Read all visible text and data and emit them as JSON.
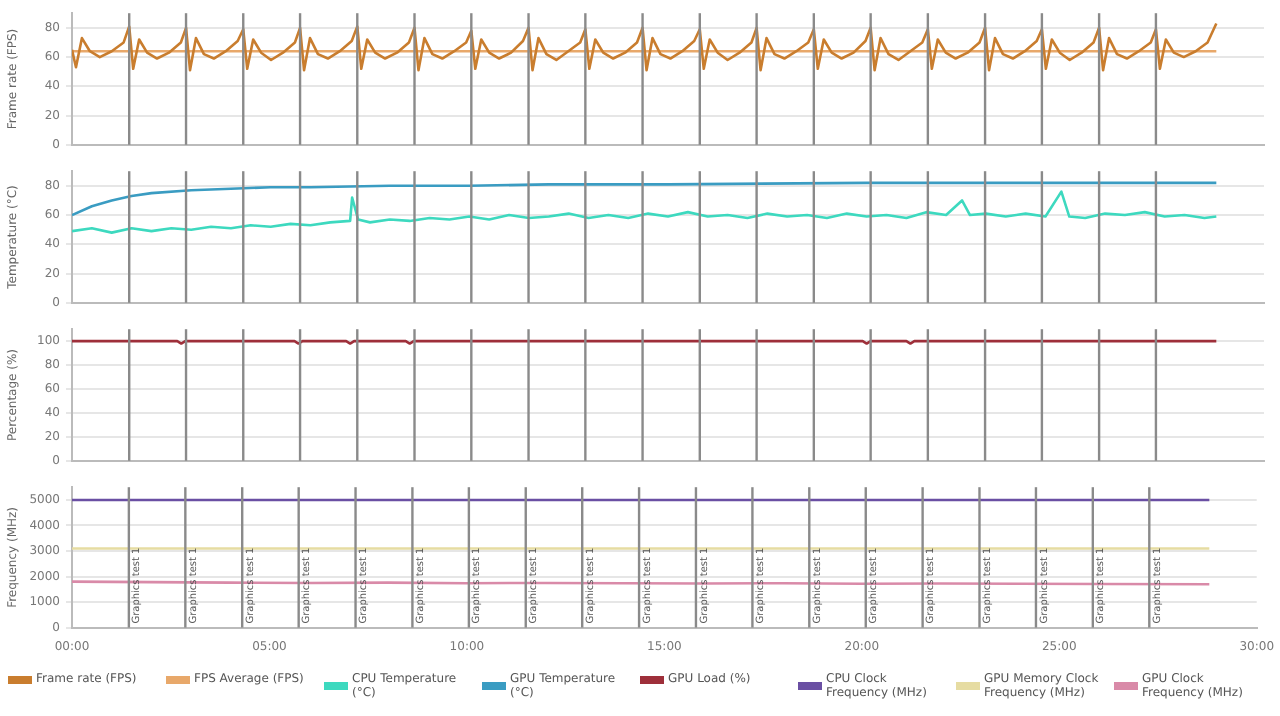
{
  "chart_data": [
    {
      "type": "line",
      "ylabel": "Frame rate (FPS)",
      "xlim": [
        0,
        30
      ],
      "ylim": [
        0,
        90
      ],
      "yticks": [
        0,
        20,
        40,
        60,
        80
      ],
      "tick_labels": "y",
      "grid": "y",
      "legend": "bottom",
      "marker": "none",
      "series": [
        {
          "name": "Frame rate (FPS)",
          "color": "#c97d2e",
          "x": [
            0,
            0.1,
            0.25,
            0.45,
            0.7,
            1.0,
            1.3,
            1.44,
            1.54,
            1.69,
            1.89,
            2.14,
            2.44,
            2.74,
            2.87,
            2.97,
            3.12,
            3.32,
            3.57,
            3.87,
            4.17,
            4.31,
            4.41,
            4.56,
            4.76,
            5.01,
            5.31,
            5.61,
            5.74,
            5.84,
            5.99,
            6.19,
            6.44,
            6.74,
            7.04,
            7.18,
            7.28,
            7.43,
            7.63,
            7.88,
            8.18,
            8.48,
            8.62,
            8.72,
            8.87,
            9.07,
            9.32,
            9.62,
            9.92,
            10.05,
            10.15,
            10.3,
            10.5,
            10.75,
            11.05,
            11.35,
            11.49,
            11.59,
            11.74,
            11.94,
            12.19,
            12.49,
            12.79,
            12.92,
            13.02,
            13.17,
            13.37,
            13.62,
            13.92,
            14.22,
            14.36,
            14.46,
            14.61,
            14.81,
            15.06,
            15.36,
            15.66,
            15.8,
            15.9,
            16.05,
            16.25,
            16.5,
            16.8,
            17.1,
            17.23,
            17.33,
            17.48,
            17.68,
            17.93,
            18.23,
            18.53,
            18.67,
            18.77,
            18.92,
            19.12,
            19.37,
            19.67,
            19.97,
            20.1,
            20.2,
            20.35,
            20.55,
            20.8,
            21.1,
            21.4,
            21.54,
            21.64,
            21.79,
            21.99,
            22.24,
            22.54,
            22.84,
            22.98,
            23.08,
            23.23,
            23.43,
            23.68,
            23.98,
            24.28,
            24.41,
            24.51,
            24.66,
            24.86,
            25.11,
            25.41,
            25.71,
            25.85,
            25.95,
            26.1,
            26.3,
            26.55,
            26.85,
            27.15,
            27.28,
            27.38,
            27.53,
            27.73,
            27.98,
            28.28,
            28.58,
            28.8
          ],
          "values": [
            65,
            53,
            73,
            64,
            60,
            64,
            70,
            81,
            52,
            72,
            63,
            59,
            63,
            70,
            80,
            51,
            73,
            62,
            59,
            64,
            71,
            79,
            52,
            72,
            63,
            58,
            63,
            70,
            80,
            51,
            73,
            62,
            59,
            64,
            71,
            81,
            52,
            72,
            63,
            59,
            63,
            70,
            80,
            51,
            73,
            62,
            59,
            64,
            70,
            78,
            52,
            72,
            63,
            59,
            63,
            71,
            80,
            51,
            73,
            62,
            58,
            64,
            70,
            79,
            52,
            72,
            63,
            59,
            63,
            70,
            80,
            51,
            73,
            62,
            59,
            64,
            71,
            79,
            52,
            72,
            63,
            58,
            63,
            70,
            80,
            51,
            73,
            62,
            59,
            64,
            70,
            79,
            52,
            72,
            63,
            59,
            63,
            71,
            80,
            51,
            73,
            62,
            58,
            64,
            70,
            79,
            52,
            72,
            63,
            59,
            63,
            70,
            80,
            51,
            73,
            62,
            59,
            64,
            71,
            79,
            52,
            72,
            63,
            58,
            63,
            70,
            80,
            51,
            73,
            62,
            59,
            64,
            70,
            79,
            52,
            72,
            63,
            60,
            64,
            70,
            83
          ]
        },
        {
          "name": "FPS Average (FPS)",
          "color": "#e8a86a",
          "x": [
            0,
            28.8
          ],
          "values": [
            64,
            64
          ]
        }
      ],
      "ref_lines": [
        {
          "axis": "x",
          "value": 1.44,
          "color": "#8a8a8a"
        },
        {
          "axis": "x",
          "value": 2.87,
          "color": "#8a8a8a"
        },
        {
          "axis": "x",
          "value": 4.31,
          "color": "#8a8a8a"
        },
        {
          "axis": "x",
          "value": 5.74,
          "color": "#8a8a8a"
        },
        {
          "axis": "x",
          "value": 7.18,
          "color": "#8a8a8a"
        },
        {
          "axis": "x",
          "value": 8.62,
          "color": "#8a8a8a"
        },
        {
          "axis": "x",
          "value": 10.05,
          "color": "#8a8a8a"
        },
        {
          "axis": "x",
          "value": 11.49,
          "color": "#8a8a8a"
        },
        {
          "axis": "x",
          "value": 12.92,
          "color": "#8a8a8a"
        },
        {
          "axis": "x",
          "value": 14.36,
          "color": "#8a8a8a"
        },
        {
          "axis": "x",
          "value": 15.8,
          "color": "#8a8a8a"
        },
        {
          "axis": "x",
          "value": 17.23,
          "color": "#8a8a8a"
        },
        {
          "axis": "x",
          "value": 18.67,
          "color": "#8a8a8a"
        },
        {
          "axis": "x",
          "value": 20.1,
          "color": "#8a8a8a"
        },
        {
          "axis": "x",
          "value": 21.54,
          "color": "#8a8a8a"
        },
        {
          "axis": "x",
          "value": 22.98,
          "color": "#8a8a8a"
        },
        {
          "axis": "x",
          "value": 24.41,
          "color": "#8a8a8a"
        },
        {
          "axis": "x",
          "value": 25.85,
          "color": "#8a8a8a"
        },
        {
          "axis": "x",
          "value": 27.28,
          "color": "#8a8a8a"
        }
      ]
    },
    {
      "type": "line",
      "ylabel": "Temperature (°C)",
      "xlim": [
        0,
        30
      ],
      "ylim": [
        0,
        90
      ],
      "yticks": [
        0,
        20,
        40,
        60,
        80
      ],
      "tick_labels": "y",
      "grid": "y",
      "legend": "bottom",
      "marker": "none",
      "series": [
        {
          "name": "CPU Temperature (°C)",
          "color": "#3dd9bf",
          "x": [
            0,
            0.5,
            1,
            1.5,
            2,
            2.5,
            3,
            3.5,
            4,
            4.5,
            5,
            5.5,
            6,
            6.5,
            7,
            7.05,
            7.2,
            7.5,
            8,
            8.5,
            9,
            9.5,
            10,
            10.5,
            11,
            11.5,
            12,
            12.5,
            13,
            13.5,
            14,
            14.5,
            15,
            15.5,
            16,
            16.5,
            17,
            17.5,
            18,
            18.5,
            19,
            19.5,
            20,
            20.5,
            21,
            21.5,
            22,
            22.4,
            22.6,
            23,
            23.5,
            24,
            24.5,
            24.9,
            25.1,
            25.5,
            26,
            26.5,
            27,
            27.5,
            28,
            28.5,
            28.8
          ],
          "values": [
            49,
            51,
            48,
            51,
            49,
            51,
            50,
            52,
            51,
            53,
            52,
            54,
            53,
            55,
            56,
            72,
            57,
            55,
            57,
            56,
            58,
            57,
            59,
            57,
            60,
            58,
            59,
            61,
            58,
            60,
            58,
            61,
            59,
            62,
            59,
            60,
            58,
            61,
            59,
            60,
            58,
            61,
            59,
            60,
            58,
            62,
            60,
            70,
            60,
            61,
            59,
            61,
            59,
            76,
            59,
            58,
            61,
            60,
            62,
            59,
            60,
            58,
            59
          ]
        },
        {
          "name": "GPU Temperature (°C)",
          "color": "#3a9cc2",
          "x": [
            0,
            0.5,
            1,
            1.5,
            2,
            3,
            4,
            5,
            6,
            8,
            10,
            12,
            15,
            20,
            25,
            28.8
          ],
          "values": [
            60,
            66,
            70,
            73,
            75,
            77,
            78,
            79,
            79,
            80,
            80,
            81,
            81,
            82,
            82,
            82
          ]
        }
      ],
      "ref_lines": [
        {
          "axis": "x",
          "value": 1.44,
          "color": "#8a8a8a"
        },
        {
          "axis": "x",
          "value": 2.87,
          "color": "#8a8a8a"
        },
        {
          "axis": "x",
          "value": 4.31,
          "color": "#8a8a8a"
        },
        {
          "axis": "x",
          "value": 5.74,
          "color": "#8a8a8a"
        },
        {
          "axis": "x",
          "value": 7.18,
          "color": "#8a8a8a"
        },
        {
          "axis": "x",
          "value": 8.62,
          "color": "#8a8a8a"
        },
        {
          "axis": "x",
          "value": 10.05,
          "color": "#8a8a8a"
        },
        {
          "axis": "x",
          "value": 11.49,
          "color": "#8a8a8a"
        },
        {
          "axis": "x",
          "value": 12.92,
          "color": "#8a8a8a"
        },
        {
          "axis": "x",
          "value": 14.36,
          "color": "#8a8a8a"
        },
        {
          "axis": "x",
          "value": 15.8,
          "color": "#8a8a8a"
        },
        {
          "axis": "x",
          "value": 17.23,
          "color": "#8a8a8a"
        },
        {
          "axis": "x",
          "value": 18.67,
          "color": "#8a8a8a"
        },
        {
          "axis": "x",
          "value": 20.1,
          "color": "#8a8a8a"
        },
        {
          "axis": "x",
          "value": 21.54,
          "color": "#8a8a8a"
        },
        {
          "axis": "x",
          "value": 22.98,
          "color": "#8a8a8a"
        },
        {
          "axis": "x",
          "value": 24.41,
          "color": "#8a8a8a"
        },
        {
          "axis": "x",
          "value": 25.85,
          "color": "#8a8a8a"
        },
        {
          "axis": "x",
          "value": 27.28,
          "color": "#8a8a8a"
        }
      ]
    },
    {
      "type": "line",
      "ylabel": "Percentage (%)",
      "xlim": [
        0,
        30
      ],
      "ylim": [
        0,
        110
      ],
      "yticks": [
        0,
        20,
        40,
        60,
        80,
        100
      ],
      "tick_labels": "y",
      "grid": "y",
      "legend": "bottom",
      "marker": "none",
      "series": [
        {
          "name": "GPU Load (%)",
          "color": "#9e2f3a",
          "x": [
            0,
            2.65,
            2.75,
            2.85,
            5.6,
            5.7,
            5.8,
            6.9,
            7.0,
            7.1,
            8.4,
            8.5,
            8.6,
            19.9,
            20.0,
            20.1,
            21.0,
            21.1,
            21.2,
            28.8
          ],
          "values": [
            100,
            100,
            98,
            100,
            100,
            98,
            100,
            100,
            98,
            100,
            100,
            98,
            100,
            100,
            98,
            100,
            100,
            98,
            100,
            100
          ]
        }
      ],
      "ref_lines": [
        {
          "axis": "x",
          "value": 1.44,
          "color": "#8a8a8a"
        },
        {
          "axis": "x",
          "value": 2.87,
          "color": "#8a8a8a"
        },
        {
          "axis": "x",
          "value": 4.31,
          "color": "#8a8a8a"
        },
        {
          "axis": "x",
          "value": 5.74,
          "color": "#8a8a8a"
        },
        {
          "axis": "x",
          "value": 7.18,
          "color": "#8a8a8a"
        },
        {
          "axis": "x",
          "value": 8.62,
          "color": "#8a8a8a"
        },
        {
          "axis": "x",
          "value": 10.05,
          "color": "#8a8a8a"
        },
        {
          "axis": "x",
          "value": 11.49,
          "color": "#8a8a8a"
        },
        {
          "axis": "x",
          "value": 12.92,
          "color": "#8a8a8a"
        },
        {
          "axis": "x",
          "value": 14.36,
          "color": "#8a8a8a"
        },
        {
          "axis": "x",
          "value": 15.8,
          "color": "#8a8a8a"
        },
        {
          "axis": "x",
          "value": 17.23,
          "color": "#8a8a8a"
        },
        {
          "axis": "x",
          "value": 18.67,
          "color": "#8a8a8a"
        },
        {
          "axis": "x",
          "value": 20.1,
          "color": "#8a8a8a"
        },
        {
          "axis": "x",
          "value": 21.54,
          "color": "#8a8a8a"
        },
        {
          "axis": "x",
          "value": 22.98,
          "color": "#8a8a8a"
        },
        {
          "axis": "x",
          "value": 24.41,
          "color": "#8a8a8a"
        },
        {
          "axis": "x",
          "value": 25.85,
          "color": "#8a8a8a"
        },
        {
          "axis": "x",
          "value": 27.28,
          "color": "#8a8a8a"
        }
      ]
    },
    {
      "type": "line",
      "ylabel": "Frequency (MHz)",
      "xlim": [
        0,
        30
      ],
      "xticks": [
        {
          "value": 0,
          "label": "00:00"
        },
        {
          "value": 5,
          "label": "05:00"
        },
        {
          "value": 10,
          "label": "10:00"
        },
        {
          "value": 15,
          "label": "15:00"
        },
        {
          "value": 20,
          "label": "20:00"
        },
        {
          "value": 25,
          "label": "25:00"
        },
        {
          "value": 30,
          "label": "30:00"
        }
      ],
      "ylim": [
        0,
        5500
      ],
      "yticks": [
        0,
        1000,
        2000,
        3000,
        4000,
        5000
      ],
      "grid": "y",
      "legend": "bottom",
      "marker": "none",
      "series": [
        {
          "name": "CPU Clock Frequency (MHz)",
          "color": "#6a4fa3",
          "x": [
            0,
            28.8
          ],
          "values": [
            5000,
            5000
          ]
        },
        {
          "name": "GPU Memory Clock Frequency (MHz)",
          "color": "#e6dca2",
          "x": [
            0,
            28.8
          ],
          "values": [
            3100,
            3100
          ]
        },
        {
          "name": "GPU Clock Frequency (MHz)",
          "color": "#d98aa8",
          "x": [
            0,
            2,
            4,
            6,
            8,
            10,
            12,
            14,
            16,
            18,
            20,
            22,
            24,
            26,
            28.8
          ],
          "values": [
            1800,
            1780,
            1760,
            1750,
            1760,
            1740,
            1750,
            1740,
            1730,
            1740,
            1720,
            1730,
            1720,
            1710,
            1700
          ]
        }
      ],
      "ref_lines": [
        {
          "axis": "x",
          "value": 1.44,
          "label": "Graphics test 1",
          "color": "#8a8a8a"
        },
        {
          "axis": "x",
          "value": 2.87,
          "label": "Graphics test 1",
          "color": "#8a8a8a"
        },
        {
          "axis": "x",
          "value": 4.31,
          "label": "Graphics test 1",
          "color": "#8a8a8a"
        },
        {
          "axis": "x",
          "value": 5.74,
          "label": "Graphics test 1",
          "color": "#8a8a8a"
        },
        {
          "axis": "x",
          "value": 7.18,
          "label": "Graphics test 1",
          "color": "#8a8a8a"
        },
        {
          "axis": "x",
          "value": 8.62,
          "label": "Graphics test 1",
          "color": "#8a8a8a"
        },
        {
          "axis": "x",
          "value": 10.05,
          "label": "Graphics test 1",
          "color": "#8a8a8a"
        },
        {
          "axis": "x",
          "value": 11.49,
          "label": "Graphics test 1",
          "color": "#8a8a8a"
        },
        {
          "axis": "x",
          "value": 12.92,
          "label": "Graphics test 1",
          "color": "#8a8a8a"
        },
        {
          "axis": "x",
          "value": 14.36,
          "label": "Graphics test 1",
          "color": "#8a8a8a"
        },
        {
          "axis": "x",
          "value": 15.8,
          "label": "Graphics test 1",
          "color": "#8a8a8a"
        },
        {
          "axis": "x",
          "value": 17.23,
          "label": "Graphics test 1",
          "color": "#8a8a8a"
        },
        {
          "axis": "x",
          "value": 18.67,
          "label": "Graphics test 1",
          "color": "#8a8a8a"
        },
        {
          "axis": "x",
          "value": 20.1,
          "label": "Graphics test 1",
          "color": "#8a8a8a"
        },
        {
          "axis": "x",
          "value": 21.54,
          "label": "Graphics test 1",
          "color": "#8a8a8a"
        },
        {
          "axis": "x",
          "value": 22.98,
          "label": "Graphics test 1",
          "color": "#8a8a8a"
        },
        {
          "axis": "x",
          "value": 24.41,
          "label": "Graphics test 1",
          "color": "#8a8a8a"
        },
        {
          "axis": "x",
          "value": 25.85,
          "label": "Graphics test 1",
          "color": "#8a8a8a"
        },
        {
          "axis": "x",
          "value": 27.28,
          "label": "Graphics test 1",
          "color": "#8a8a8a"
        }
      ]
    }
  ]
}
